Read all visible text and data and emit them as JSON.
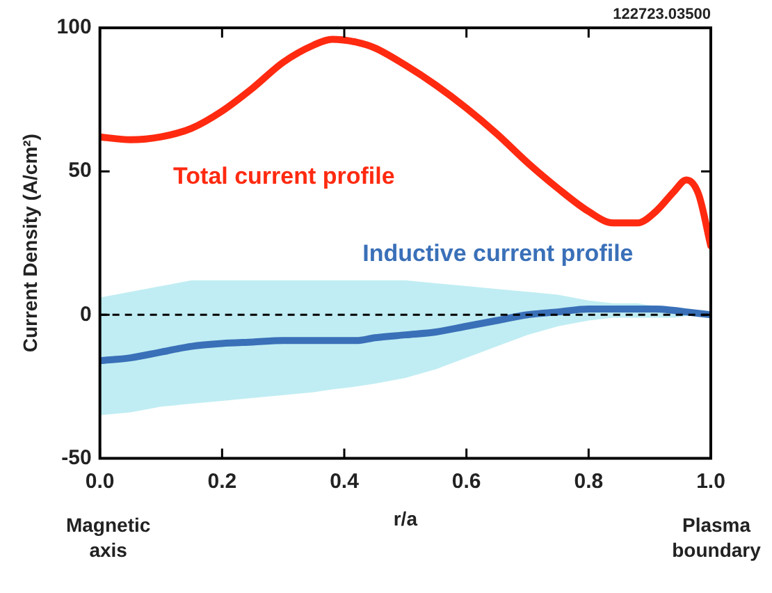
{
  "chart_data": {
    "type": "line",
    "xlabel": "r/a",
    "ylabel": "Current Density (A/cm²)",
    "x": [
      0,
      0.05,
      0.1,
      0.15,
      0.2,
      0.25,
      0.3,
      0.35,
      0.38,
      0.42,
      0.45,
      0.5,
      0.55,
      0.6,
      0.65,
      0.7,
      0.75,
      0.8,
      0.84,
      0.88,
      0.91,
      0.94,
      0.96,
      0.98,
      1.0
    ],
    "series": [
      {
        "name": "Total current profile",
        "color": "#ff2a10",
        "values": [
          62,
          61,
          62,
          65,
          71,
          79,
          88,
          94,
          96,
          95,
          93,
          87,
          80,
          72,
          63,
          53,
          44,
          36,
          32,
          32,
          36,
          43,
          47,
          42,
          24
        ]
      },
      {
        "name": "Inductive current profile",
        "color": "#3a70b8",
        "values": [
          -16,
          -15,
          -13,
          -11,
          -10,
          -9.5,
          -9,
          -9,
          -9,
          -9,
          -8,
          -7,
          -6,
          -4,
          -2,
          0,
          1,
          2,
          2,
          2,
          2,
          1.5,
          1,
          0.5,
          0
        ],
        "lower": [
          -35,
          -34,
          -32,
          -31,
          -30,
          -29,
          -28,
          -27,
          -26,
          -25,
          -24,
          -22,
          -19,
          -15,
          -11,
          -7,
          -4,
          -2,
          -1,
          -1,
          -1,
          -1,
          -0.5,
          0,
          0
        ],
        "upper": [
          6,
          8,
          10,
          12,
          12,
          12,
          12,
          12,
          12,
          12,
          12,
          12,
          11,
          10,
          9,
          8,
          7,
          5,
          4,
          4,
          3,
          2,
          1,
          0.5,
          0
        ]
      }
    ],
    "xlim": [
      0,
      1
    ],
    "ylim": [
      -50,
      100
    ],
    "xticks": [
      {
        "value": 0,
        "label": "0.0"
      },
      {
        "value": 0.2,
        "label": "0.2"
      },
      {
        "value": 0.4,
        "label": "0.4"
      },
      {
        "value": 0.6,
        "label": "0.6"
      },
      {
        "value": 0.8,
        "label": "0.8"
      },
      {
        "value": 1,
        "label": "1.0"
      }
    ],
    "yticks": [
      -50,
      0,
      50,
      100
    ],
    "ref_lines": [
      {
        "axis": "y",
        "value": 0,
        "color": "#000000",
        "line_style": "dashed"
      }
    ],
    "annotations": [
      "122723.03500",
      "Magnetic axis",
      "Plasma boundary"
    ],
    "grid": false,
    "legend": false,
    "marker": "none",
    "line_style": "solid"
  }
}
